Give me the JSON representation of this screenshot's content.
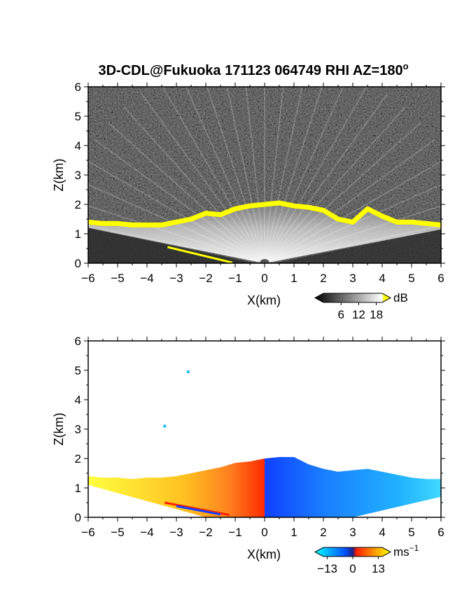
{
  "title": "3D-CDL@Fukuoka 171123 064749 RHI AZ=180",
  "title_superscript": "o",
  "chart_data": [
    {
      "type": "heatmap",
      "name": "reflectivity",
      "xlabel": "X(km)",
      "ylabel": "Z(km)",
      "xlim": [
        -6,
        6
      ],
      "ylim": [
        0,
        6
      ],
      "xticks": [
        -6,
        -5,
        -4,
        -3,
        -2,
        -1,
        0,
        1,
        2,
        3,
        4,
        5,
        6
      ],
      "yticks": [
        0,
        1,
        2,
        3,
        4,
        5,
        6
      ],
      "colorbar": {
        "unit": "dB",
        "ticks": [
          6,
          12,
          18
        ],
        "range": [
          0,
          20
        ],
        "colors": [
          "#000000",
          "#ffffff",
          "#ffff00"
        ]
      },
      "cloud_top_km": [
        [
          -6.0,
          1.4
        ],
        [
          -5.5,
          1.35
        ],
        [
          -5.0,
          1.35
        ],
        [
          -4.5,
          1.3
        ],
        [
          -4.0,
          1.3
        ],
        [
          -3.5,
          1.3
        ],
        [
          -3.0,
          1.4
        ],
        [
          -2.5,
          1.5
        ],
        [
          -2.0,
          1.7
        ],
        [
          -1.5,
          1.65
        ],
        [
          -1.0,
          1.85
        ],
        [
          -0.5,
          1.95
        ],
        [
          0.0,
          2.0
        ],
        [
          0.5,
          2.05
        ],
        [
          1.0,
          1.95
        ],
        [
          1.5,
          1.9
        ],
        [
          2.0,
          1.8
        ],
        [
          2.5,
          1.5
        ],
        [
          3.0,
          1.4
        ],
        [
          3.5,
          1.85
        ],
        [
          4.0,
          1.6
        ],
        [
          4.5,
          1.4
        ],
        [
          5.0,
          1.4
        ],
        [
          5.5,
          1.35
        ],
        [
          6.0,
          1.3
        ]
      ]
    },
    {
      "type": "heatmap",
      "name": "doppler_velocity",
      "xlabel": "X(km)",
      "ylabel": "Z(km)",
      "xlim": [
        -6,
        6
      ],
      "ylim": [
        0,
        6
      ],
      "xticks": [
        -6,
        -5,
        -4,
        -3,
        -2,
        -1,
        0,
        1,
        2,
        3,
        4,
        5,
        6
      ],
      "yticks": [
        0,
        1,
        2,
        3,
        4,
        5,
        6
      ],
      "colorbar": {
        "unit": "ms",
        "unit_superscript": "-1",
        "ticks": [
          -13,
          0,
          13
        ],
        "tick_labels": [
          "−13",
          "0",
          "13"
        ],
        "range": [
          -15,
          15
        ],
        "colors": [
          "#00ffff",
          "#0040ff",
          "#ff2000",
          "#ffff00"
        ]
      },
      "cloud_top_km": [
        [
          -6.0,
          1.4
        ],
        [
          -5.5,
          1.35
        ],
        [
          -5.0,
          1.35
        ],
        [
          -4.5,
          1.3
        ],
        [
          -4.0,
          1.35
        ],
        [
          -3.5,
          1.35
        ],
        [
          -3.0,
          1.4
        ],
        [
          -2.5,
          1.5
        ],
        [
          -2.0,
          1.6
        ],
        [
          -1.5,
          1.7
        ],
        [
          -1.0,
          1.85
        ],
        [
          -0.5,
          1.9
        ],
        [
          0.0,
          2.0
        ],
        [
          0.5,
          2.05
        ],
        [
          1.0,
          2.05
        ],
        [
          1.5,
          1.8
        ],
        [
          2.0,
          1.65
        ],
        [
          2.5,
          1.55
        ],
        [
          3.0,
          1.6
        ],
        [
          3.5,
          1.65
        ],
        [
          4.0,
          1.55
        ],
        [
          4.5,
          1.45
        ],
        [
          5.0,
          1.35
        ],
        [
          5.5,
          1.3
        ],
        [
          6.0,
          1.3
        ]
      ],
      "isolated_points_km": [
        [
          -2.6,
          4.95
        ],
        [
          -3.4,
          3.1
        ]
      ]
    }
  ]
}
